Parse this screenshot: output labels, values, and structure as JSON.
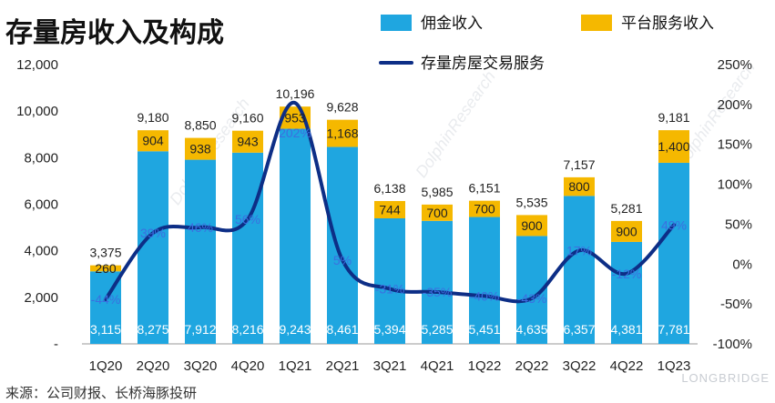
{
  "title": "存量房收入及构成",
  "source": "来源：公司财报、长桥海豚投研",
  "brand": "LONGBRIDGE",
  "colors": {
    "commission": "#1fa6e0",
    "platform": "#f5b800",
    "line": "#0d2e86",
    "pctLabel": "#3b6fe0"
  },
  "chart_data": {
    "type": "bar",
    "stacked": true,
    "categories": [
      "1Q20",
      "2Q20",
      "3Q20",
      "4Q20",
      "1Q21",
      "2Q21",
      "3Q21",
      "4Q21",
      "1Q22",
      "2Q22",
      "3Q22",
      "4Q22",
      "1Q23"
    ],
    "series": [
      {
        "name": "佣金收入",
        "type": "bar",
        "axis": "left",
        "values": [
          3115,
          8275,
          7912,
          8216,
          9243,
          8461,
          5394,
          5285,
          5451,
          4635,
          6357,
          4381,
          7781
        ]
      },
      {
        "name": "平台服务收入",
        "type": "bar",
        "axis": "left",
        "values": [
          260,
          904,
          938,
          943,
          953,
          1168,
          744,
          700,
          700,
          900,
          800,
          900,
          1400
        ]
      },
      {
        "name": "存量房屋交易服务",
        "type": "line",
        "axis": "right",
        "values": [
          -44,
          39,
          46,
          56,
          202,
          5,
          -31,
          -35,
          -40,
          -43,
          17,
          -12,
          49
        ],
        "labels": [
          "-44%",
          "39%",
          "46%",
          "56%",
          "202%",
          "5%",
          "-31%",
          "-35%",
          "-40%",
          "-43%",
          "17%",
          "-12%",
          "49%"
        ]
      }
    ],
    "totals": [
      "3,375",
      "9,180",
      "8,850",
      "9,160",
      "10,196",
      "9,628",
      "6,138",
      "5,985",
      "6,151",
      "5,535",
      "7,157",
      "5,281",
      "9,181"
    ],
    "left_axis": {
      "ylim": [
        0,
        12000
      ],
      "ticks": [
        "-",
        "2,000",
        "4,000",
        "6,000",
        "8,000",
        "10,000",
        "12,000"
      ]
    },
    "right_axis": {
      "ylim": [
        -100,
        250
      ],
      "ticks": [
        "-100%",
        "-50%",
        "0%",
        "50%",
        "100%",
        "150%",
        "200%",
        "250%"
      ]
    },
    "legend_position": "top-right"
  }
}
